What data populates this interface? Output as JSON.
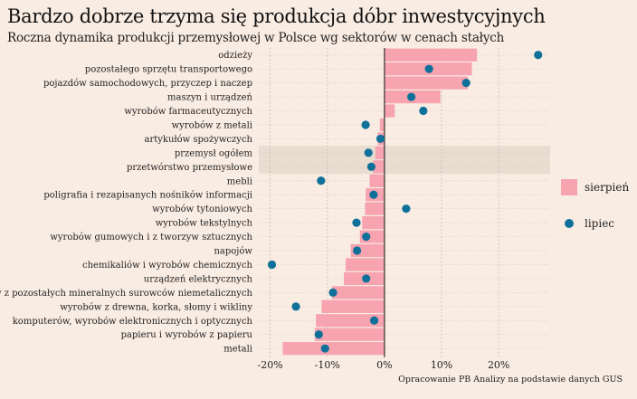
{
  "title": "Bardzo dobrze trzyma się produkcja dóbr inwestycyjnych",
  "subtitle": "Roczna dynamika produkcji przemysłowej w Polsce wg sektorów w cenach stałych",
  "caption": "Opracowanie PB Analizy na podstawie danych GUS",
  "colors": {
    "bar": "#f7a3b0",
    "dot": "#0f709a",
    "highlight": "#e8ddd0",
    "background": "#f9ece2"
  },
  "chart_data": {
    "type": "bar",
    "orientation": "horizontal",
    "title": "Bardzo dobrze trzyma się produkcja dóbr inwestycyjnych",
    "subtitle": "Roczna dynamika produkcji przemysłowej w Polsce wg sektorów w cenach stałych",
    "categories": [
      "odzieży",
      "pozostałego sprzętu transportowego",
      "pojazdów samochodowych, przyczep i naczep",
      "maszyn i urządzeń",
      "wyrobów farmaceutycznych",
      "wyrobów z metali",
      "artykułów spożywczych",
      "przemysł ogółem",
      "przetwórstwo przemysłowe",
      "mebli",
      "poligrafia i rezapisanych nośników informacji",
      "wyrobów tytoniowych",
      "wyrobów tekstylnych",
      "wyrobów gumowych i z tworzyw sztucznych",
      "napojów",
      "chemikaliów i wyrobów chemicznych",
      "urządzeń elektrycznych",
      "wyrobów z pozostałych mineralnych surowców niemetalicznych",
      "wyrobów z drewna, korka, słomy i wikliny",
      "komputerów, wyrobów elektronicznych i optycznych",
      "papieru i wyrobów z papieru",
      "metali"
    ],
    "series": [
      {
        "name": "sierpień",
        "kind": "bar",
        "values": [
          16.2,
          15.3,
          14.6,
          9.8,
          1.8,
          -0.8,
          -1.2,
          -1.6,
          -2.0,
          -2.6,
          -3.3,
          -3.4,
          -3.9,
          -4.3,
          -5.9,
          -6.8,
          -7.1,
          -9.2,
          -11.0,
          -12.0,
          -12.2,
          -17.8
        ]
      },
      {
        "name": "lipiec",
        "kind": "dot",
        "values": [
          26.9,
          7.8,
          14.3,
          4.7,
          6.8,
          -3.3,
          -0.7,
          -2.8,
          -2.3,
          -11.1,
          -1.9,
          3.8,
          -4.9,
          -3.2,
          -4.8,
          -19.7,
          -3.2,
          -9.0,
          -15.5,
          -1.8,
          -11.5,
          -10.4
        ]
      }
    ],
    "highlighted_categories": [
      "przemysł ogółem",
      "przetwórstwo przemysłowe"
    ],
    "xlim": [
      -22,
      29
    ],
    "xticks": [
      "-20%",
      "-10%",
      "0%",
      "10%",
      "20%"
    ],
    "xtick_values": [
      -20,
      -10,
      0,
      10,
      20
    ],
    "grid": true,
    "legend_position": "right"
  }
}
